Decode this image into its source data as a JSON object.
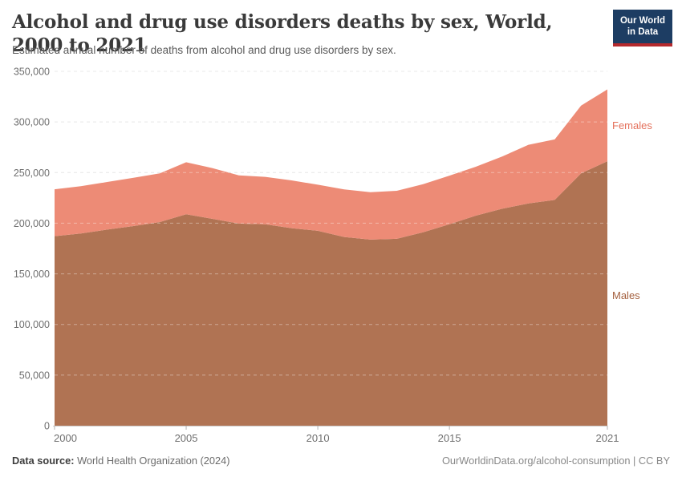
{
  "header": {
    "title": "Alcohol and drug use disorders deaths by sex, World, 2000 to 2021",
    "subtitle": "Estimated annual number of deaths from alcohol and drug use disorders by sex.",
    "logo": {
      "line1": "Our World",
      "line2": "in Data"
    }
  },
  "chart_data": {
    "type": "area",
    "stacked": true,
    "title": "Alcohol and drug use disorders deaths by sex, World, 2000 to 2021",
    "x": [
      2000,
      2001,
      2002,
      2003,
      2004,
      2005,
      2006,
      2007,
      2008,
      2009,
      2010,
      2011,
      2012,
      2013,
      2014,
      2015,
      2016,
      2017,
      2018,
      2019,
      2020,
      2021
    ],
    "series": [
      {
        "name": "Males",
        "color": "#b07353",
        "label_color": "#a4603f",
        "values": [
          187200,
          189800,
          193700,
          197200,
          201100,
          208800,
          204300,
          199600,
          199000,
          195100,
          192500,
          186400,
          183800,
          184600,
          191100,
          199000,
          207500,
          214300,
          219500,
          223000,
          249300,
          261200
        ]
      },
      {
        "name": "Females",
        "color": "#ed8b76",
        "label_color": "#e4705b",
        "values": [
          46300,
          46700,
          47000,
          47700,
          48100,
          51400,
          50100,
          47700,
          46800,
          47200,
          45500,
          47000,
          46900,
          47400,
          47500,
          48000,
          48300,
          51500,
          58000,
          59800,
          66900,
          71000
        ]
      }
    ],
    "xlim": [
      2000,
      2021
    ],
    "ylim": [
      0,
      350000
    ],
    "y_ticks": [
      0,
      50000,
      100000,
      150000,
      200000,
      250000,
      300000,
      350000
    ],
    "x_ticks": [
      2000,
      2005,
      2010,
      2015,
      2021
    ],
    "grid": true,
    "grid_color": "#dcdcdc",
    "axis_text_color": "#6e6e6e",
    "legend_position": "right"
  },
  "footer": {
    "datasource_label": "Data source:",
    "datasource_value": " World Health Organization (2024)",
    "link": "OurWorldinData.org/alcohol-consumption",
    "separator": " | ",
    "license": "CC BY"
  }
}
